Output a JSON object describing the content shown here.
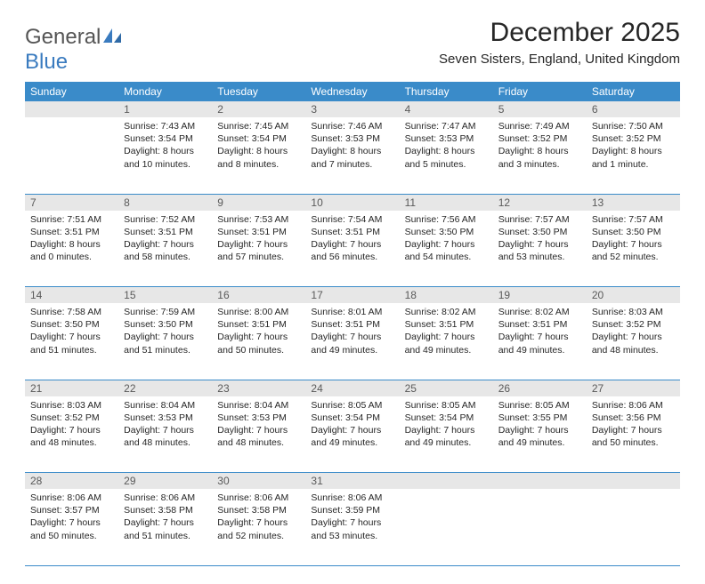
{
  "logo": {
    "part1": "General",
    "part2": "Blue"
  },
  "title": "December 2025",
  "location": "Seven Sisters, England, United Kingdom",
  "colors": {
    "header_bg": "#3a8bc9",
    "header_text": "#ffffff",
    "daynum_bg": "#e7e7e7",
    "daynum_text": "#5a5a5a",
    "body_text": "#262626",
    "rule": "#3a8bc9",
    "logo_blue": "#3a7bbf"
  },
  "weekdays": [
    "Sunday",
    "Monday",
    "Tuesday",
    "Wednesday",
    "Thursday",
    "Friday",
    "Saturday"
  ],
  "weeks": [
    [
      {
        "day": "",
        "sunrise": "",
        "sunset": "",
        "daylight": ""
      },
      {
        "day": "1",
        "sunrise": "Sunrise: 7:43 AM",
        "sunset": "Sunset: 3:54 PM",
        "daylight": "Daylight: 8 hours and 10 minutes."
      },
      {
        "day": "2",
        "sunrise": "Sunrise: 7:45 AM",
        "sunset": "Sunset: 3:54 PM",
        "daylight": "Daylight: 8 hours and 8 minutes."
      },
      {
        "day": "3",
        "sunrise": "Sunrise: 7:46 AM",
        "sunset": "Sunset: 3:53 PM",
        "daylight": "Daylight: 8 hours and 7 minutes."
      },
      {
        "day": "4",
        "sunrise": "Sunrise: 7:47 AM",
        "sunset": "Sunset: 3:53 PM",
        "daylight": "Daylight: 8 hours and 5 minutes."
      },
      {
        "day": "5",
        "sunrise": "Sunrise: 7:49 AM",
        "sunset": "Sunset: 3:52 PM",
        "daylight": "Daylight: 8 hours and 3 minutes."
      },
      {
        "day": "6",
        "sunrise": "Sunrise: 7:50 AM",
        "sunset": "Sunset: 3:52 PM",
        "daylight": "Daylight: 8 hours and 1 minute."
      }
    ],
    [
      {
        "day": "7",
        "sunrise": "Sunrise: 7:51 AM",
        "sunset": "Sunset: 3:51 PM",
        "daylight": "Daylight: 8 hours and 0 minutes."
      },
      {
        "day": "8",
        "sunrise": "Sunrise: 7:52 AM",
        "sunset": "Sunset: 3:51 PM",
        "daylight": "Daylight: 7 hours and 58 minutes."
      },
      {
        "day": "9",
        "sunrise": "Sunrise: 7:53 AM",
        "sunset": "Sunset: 3:51 PM",
        "daylight": "Daylight: 7 hours and 57 minutes."
      },
      {
        "day": "10",
        "sunrise": "Sunrise: 7:54 AM",
        "sunset": "Sunset: 3:51 PM",
        "daylight": "Daylight: 7 hours and 56 minutes."
      },
      {
        "day": "11",
        "sunrise": "Sunrise: 7:56 AM",
        "sunset": "Sunset: 3:50 PM",
        "daylight": "Daylight: 7 hours and 54 minutes."
      },
      {
        "day": "12",
        "sunrise": "Sunrise: 7:57 AM",
        "sunset": "Sunset: 3:50 PM",
        "daylight": "Daylight: 7 hours and 53 minutes."
      },
      {
        "day": "13",
        "sunrise": "Sunrise: 7:57 AM",
        "sunset": "Sunset: 3:50 PM",
        "daylight": "Daylight: 7 hours and 52 minutes."
      }
    ],
    [
      {
        "day": "14",
        "sunrise": "Sunrise: 7:58 AM",
        "sunset": "Sunset: 3:50 PM",
        "daylight": "Daylight: 7 hours and 51 minutes."
      },
      {
        "day": "15",
        "sunrise": "Sunrise: 7:59 AM",
        "sunset": "Sunset: 3:50 PM",
        "daylight": "Daylight: 7 hours and 51 minutes."
      },
      {
        "day": "16",
        "sunrise": "Sunrise: 8:00 AM",
        "sunset": "Sunset: 3:51 PM",
        "daylight": "Daylight: 7 hours and 50 minutes."
      },
      {
        "day": "17",
        "sunrise": "Sunrise: 8:01 AM",
        "sunset": "Sunset: 3:51 PM",
        "daylight": "Daylight: 7 hours and 49 minutes."
      },
      {
        "day": "18",
        "sunrise": "Sunrise: 8:02 AM",
        "sunset": "Sunset: 3:51 PM",
        "daylight": "Daylight: 7 hours and 49 minutes."
      },
      {
        "day": "19",
        "sunrise": "Sunrise: 8:02 AM",
        "sunset": "Sunset: 3:51 PM",
        "daylight": "Daylight: 7 hours and 49 minutes."
      },
      {
        "day": "20",
        "sunrise": "Sunrise: 8:03 AM",
        "sunset": "Sunset: 3:52 PM",
        "daylight": "Daylight: 7 hours and 48 minutes."
      }
    ],
    [
      {
        "day": "21",
        "sunrise": "Sunrise: 8:03 AM",
        "sunset": "Sunset: 3:52 PM",
        "daylight": "Daylight: 7 hours and 48 minutes."
      },
      {
        "day": "22",
        "sunrise": "Sunrise: 8:04 AM",
        "sunset": "Sunset: 3:53 PM",
        "daylight": "Daylight: 7 hours and 48 minutes."
      },
      {
        "day": "23",
        "sunrise": "Sunrise: 8:04 AM",
        "sunset": "Sunset: 3:53 PM",
        "daylight": "Daylight: 7 hours and 48 minutes."
      },
      {
        "day": "24",
        "sunrise": "Sunrise: 8:05 AM",
        "sunset": "Sunset: 3:54 PM",
        "daylight": "Daylight: 7 hours and 49 minutes."
      },
      {
        "day": "25",
        "sunrise": "Sunrise: 8:05 AM",
        "sunset": "Sunset: 3:54 PM",
        "daylight": "Daylight: 7 hours and 49 minutes."
      },
      {
        "day": "26",
        "sunrise": "Sunrise: 8:05 AM",
        "sunset": "Sunset: 3:55 PM",
        "daylight": "Daylight: 7 hours and 49 minutes."
      },
      {
        "day": "27",
        "sunrise": "Sunrise: 8:06 AM",
        "sunset": "Sunset: 3:56 PM",
        "daylight": "Daylight: 7 hours and 50 minutes."
      }
    ],
    [
      {
        "day": "28",
        "sunrise": "Sunrise: 8:06 AM",
        "sunset": "Sunset: 3:57 PM",
        "daylight": "Daylight: 7 hours and 50 minutes."
      },
      {
        "day": "29",
        "sunrise": "Sunrise: 8:06 AM",
        "sunset": "Sunset: 3:58 PM",
        "daylight": "Daylight: 7 hours and 51 minutes."
      },
      {
        "day": "30",
        "sunrise": "Sunrise: 8:06 AM",
        "sunset": "Sunset: 3:58 PM",
        "daylight": "Daylight: 7 hours and 52 minutes."
      },
      {
        "day": "31",
        "sunrise": "Sunrise: 8:06 AM",
        "sunset": "Sunset: 3:59 PM",
        "daylight": "Daylight: 7 hours and 53 minutes."
      },
      {
        "day": "",
        "sunrise": "",
        "sunset": "",
        "daylight": ""
      },
      {
        "day": "",
        "sunrise": "",
        "sunset": "",
        "daylight": ""
      },
      {
        "day": "",
        "sunrise": "",
        "sunset": "",
        "daylight": ""
      }
    ]
  ]
}
